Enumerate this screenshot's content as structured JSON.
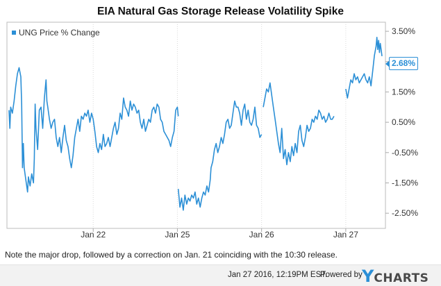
{
  "chart_data": {
    "type": "line",
    "title": "EIA Natural Gas Storage Release Volatility Spike",
    "legend": "UNG Price % Change",
    "xlabel": "",
    "ylabel": "",
    "ylim": [
      -3.0,
      3.8
    ],
    "yticks": [
      3.5,
      2.5,
      1.5,
      0.5,
      -0.5,
      -1.5,
      -2.5
    ],
    "ytick_labels": [
      "3.50%",
      "2.50%",
      "1.50%",
      "0.50%",
      "-0.50%",
      "-1.50%",
      "-2.50%"
    ],
    "xticks": [
      {
        "day": 1,
        "label": "Jan 22"
      },
      {
        "day": 2,
        "label": "Jan 25"
      },
      {
        "day": 3,
        "label": "Jan 26"
      },
      {
        "day": 4,
        "label": "Jan 27"
      }
    ],
    "xlim": [
      0,
      4.43
    ],
    "last_value_label": "2.68%",
    "series": [
      {
        "name": "UNG Price % Change",
        "color": "#2b8fd6",
        "segments": [
          [
            [
              0.0,
              0.9
            ],
            [
              0.01,
              0.3
            ],
            [
              0.02,
              1.0
            ],
            [
              0.04,
              0.8
            ],
            [
              0.06,
              1.2
            ],
            [
              0.08,
              1.7
            ],
            [
              0.1,
              2.1
            ],
            [
              0.12,
              2.3
            ],
            [
              0.14,
              2.0
            ],
            [
              0.15,
              1.1
            ],
            [
              0.16,
              -1.0
            ],
            [
              0.17,
              -0.2
            ],
            [
              0.18,
              -1.0
            ],
            [
              0.2,
              -1.4
            ],
            [
              0.22,
              -1.8
            ],
            [
              0.23,
              -1.3
            ],
            [
              0.25,
              -1.6
            ],
            [
              0.27,
              -1.2
            ],
            [
              0.29,
              -1.5
            ],
            [
              0.3,
              -0.7
            ],
            [
              0.31,
              1.1
            ],
            [
              0.32,
              0.3
            ],
            [
              0.34,
              -0.4
            ],
            [
              0.36,
              0.9
            ],
            [
              0.38,
              1.0
            ],
            [
              0.4,
              0.3
            ],
            [
              0.42,
              1.3
            ],
            [
              0.44,
              1.9
            ],
            [
              0.45,
              1.2
            ],
            [
              0.46,
              1.0
            ],
            [
              0.48,
              0.6
            ],
            [
              0.5,
              0.3
            ],
            [
              0.52,
              0.5
            ],
            [
              0.54,
              0.6
            ],
            [
              0.56,
              0.0
            ],
            [
              0.58,
              -0.3
            ],
            [
              0.6,
              0.0
            ],
            [
              0.62,
              -0.5
            ],
            [
              0.64,
              0.0
            ],
            [
              0.66,
              0.4
            ],
            [
              0.68,
              -0.1
            ],
            [
              0.7,
              -0.3
            ],
            [
              0.72,
              -0.7
            ],
            [
              0.74,
              -1.0
            ],
            [
              0.76,
              -0.6
            ],
            [
              0.78,
              0.0
            ],
            [
              0.8,
              0.3
            ],
            [
              0.82,
              0.6
            ],
            [
              0.84,
              0.2
            ],
            [
              0.86,
              0.7
            ],
            [
              0.88,
              0.6
            ],
            [
              0.9,
              0.8
            ],
            [
              0.92,
              0.7
            ],
            [
              0.94,
              0.9
            ],
            [
              0.96,
              0.5
            ],
            [
              0.98,
              0.8
            ],
            [
              1.0,
              0.6
            ],
            [
              1.02,
              0.2
            ],
            [
              1.04,
              -0.3
            ],
            [
              1.06,
              -0.5
            ],
            [
              1.08,
              -0.2
            ],
            [
              1.1,
              -0.4
            ],
            [
              1.12,
              0.1
            ],
            [
              1.14,
              -0.3
            ],
            [
              1.16,
              -0.2
            ],
            [
              1.18,
              0.0
            ],
            [
              1.2,
              -0.3
            ],
            [
              1.22,
              0.0
            ],
            [
              1.24,
              0.3
            ],
            [
              1.26,
              0.5
            ],
            [
              1.28,
              0.1
            ],
            [
              1.3,
              0.3
            ],
            [
              1.32,
              0.8
            ],
            [
              1.34,
              0.6
            ],
            [
              1.36,
              1.3
            ],
            [
              1.38,
              1.0
            ],
            [
              1.4,
              0.9
            ],
            [
              1.42,
              0.7
            ],
            [
              1.44,
              1.2
            ],
            [
              1.46,
              0.9
            ],
            [
              1.48,
              1.1
            ],
            [
              1.5,
              1.0
            ],
            [
              1.52,
              0.8
            ],
            [
              1.54,
              0.9
            ],
            [
              1.56,
              0.5
            ],
            [
              1.58,
              0.3
            ],
            [
              1.6,
              0.6
            ],
            [
              1.62,
              0.2
            ],
            [
              1.64,
              0.4
            ],
            [
              1.66,
              0.6
            ],
            [
              1.68,
              0.5
            ],
            [
              1.7,
              0.9
            ],
            [
              1.72,
              1.0
            ],
            [
              1.74,
              0.8
            ],
            [
              1.76,
              1.1
            ],
            [
              1.78,
              1.0
            ],
            [
              1.8,
              0.6
            ],
            [
              1.82,
              0.5
            ],
            [
              1.84,
              0.2
            ],
            [
              1.86,
              0.1
            ],
            [
              1.88,
              0.0
            ],
            [
              1.9,
              -0.1
            ],
            [
              1.92,
              -0.3
            ],
            [
              1.94,
              0.0
            ],
            [
              1.96,
              0.2
            ],
            [
              1.98,
              0.9
            ],
            [
              2.0,
              1.0
            ],
            [
              2.01,
              0.7
            ]
          ],
          [
            [
              2.01,
              -1.7
            ],
            [
              2.03,
              -2.3
            ],
            [
              2.05,
              -2.0
            ],
            [
              2.07,
              -2.4
            ],
            [
              2.09,
              -1.9
            ],
            [
              2.11,
              -2.2
            ],
            [
              2.13,
              -2.0
            ],
            [
              2.15,
              -2.1
            ],
            [
              2.17,
              -1.9
            ],
            [
              2.19,
              -2.0
            ],
            [
              2.21,
              -1.8
            ],
            [
              2.23,
              -2.2
            ],
            [
              2.25,
              -2.0
            ],
            [
              2.27,
              -2.3
            ],
            [
              2.29,
              -2.0
            ],
            [
              2.31,
              -1.8
            ],
            [
              2.33,
              -1.9
            ],
            [
              2.35,
              -1.6
            ],
            [
              2.37,
              -1.8
            ],
            [
              2.39,
              -1.4
            ],
            [
              2.4,
              -1.0
            ],
            [
              2.42,
              -0.8
            ],
            [
              2.44,
              -0.4
            ],
            [
              2.46,
              -0.2
            ],
            [
              2.48,
              -0.5
            ],
            [
              2.5,
              -0.3
            ],
            [
              2.52,
              0.0
            ],
            [
              2.54,
              -0.2
            ],
            [
              2.56,
              0.1
            ],
            [
              2.58,
              0.5
            ],
            [
              2.6,
              0.6
            ],
            [
              2.62,
              0.3
            ],
            [
              2.64,
              0.4
            ],
            [
              2.66,
              0.8
            ],
            [
              2.68,
              1.2
            ],
            [
              2.7,
              1.0
            ],
            [
              2.72,
              1.0
            ],
            [
              2.74,
              0.8
            ],
            [
              2.76,
              0.4
            ],
            [
              2.78,
              0.9
            ],
            [
              2.8,
              1.1
            ],
            [
              2.82,
              0.6
            ],
            [
              2.84,
              0.9
            ],
            [
              2.86,
              0.5
            ],
            [
              2.88,
              0.4
            ],
            [
              2.9,
              0.6
            ],
            [
              2.92,
              1.0
            ],
            [
              2.94,
              0.4
            ],
            [
              2.96,
              0.3
            ],
            [
              2.98,
              0.0
            ],
            [
              3.0,
              0.1
            ]
          ],
          [
            [
              3.02,
              1.0
            ],
            [
              3.04,
              1.3
            ],
            [
              3.06,
              1.6
            ],
            [
              3.08,
              1.5
            ],
            [
              3.1,
              1.8
            ],
            [
              3.12,
              1.4
            ],
            [
              3.14,
              1.0
            ],
            [
              3.16,
              0.6
            ],
            [
              3.18,
              0.2
            ],
            [
              3.2,
              -0.2
            ],
            [
              3.22,
              -0.5
            ],
            [
              3.24,
              0.3
            ],
            [
              3.26,
              -0.7
            ],
            [
              3.28,
              -0.4
            ],
            [
              3.3,
              -0.9
            ],
            [
              3.32,
              -0.5
            ],
            [
              3.34,
              -0.8
            ],
            [
              3.36,
              -0.3
            ],
            [
              3.38,
              -0.6
            ],
            [
              3.4,
              -0.2
            ],
            [
              3.42,
              -0.5
            ],
            [
              3.44,
              0.2
            ],
            [
              3.46,
              0.4
            ],
            [
              3.48,
              -0.1
            ],
            [
              3.5,
              -0.3
            ],
            [
              3.52,
              0.0
            ],
            [
              3.54,
              0.4
            ],
            [
              3.56,
              0.2
            ],
            [
              3.58,
              0.3
            ],
            [
              3.6,
              0.6
            ],
            [
              3.62,
              0.5
            ],
            [
              3.64,
              0.7
            ],
            [
              3.66,
              0.6
            ],
            [
              3.68,
              0.9
            ],
            [
              3.7,
              0.8
            ],
            [
              3.72,
              0.6
            ],
            [
              3.74,
              0.7
            ],
            [
              3.76,
              0.5
            ],
            [
              3.78,
              0.6
            ],
            [
              3.8,
              0.8
            ],
            [
              3.82,
              0.6
            ],
            [
              3.84,
              0.6
            ],
            [
              3.86,
              0.7
            ]
          ],
          [
            [
              4.0,
              1.6
            ],
            [
              4.02,
              1.3
            ],
            [
              4.04,
              1.6
            ],
            [
              4.06,
              1.9
            ],
            [
              4.08,
              1.8
            ],
            [
              4.1,
              2.1
            ],
            [
              4.12,
              1.9
            ],
            [
              4.14,
              2.0
            ],
            [
              4.16,
              1.8
            ],
            [
              4.18,
              1.9
            ],
            [
              4.2,
              2.0
            ],
            [
              4.22,
              2.1
            ],
            [
              4.24,
              1.9
            ],
            [
              4.26,
              1.8
            ],
            [
              4.28,
              2.0
            ],
            [
              4.3,
              1.7
            ],
            [
              4.32,
              2.2
            ],
            [
              4.34,
              2.7
            ],
            [
              4.36,
              3.0
            ],
            [
              4.37,
              3.3
            ],
            [
              4.38,
              2.9
            ],
            [
              4.39,
              3.2
            ],
            [
              4.4,
              2.8
            ],
            [
              4.41,
              3.1
            ],
            [
              4.42,
              2.9
            ],
            [
              4.43,
              2.68
            ]
          ]
        ]
      }
    ]
  },
  "annotation": {
    "note": "Note the major drop, followed by a correction on Jan. 21 coinciding with the 10:30 release."
  },
  "footer": {
    "timestamp": "Jan 27 2016, 12:19PM EST.",
    "powered_by": "Powered by",
    "logo_y": "Y",
    "logo_rest": "CHARTS"
  },
  "colors": {
    "line": "#2b8fd6",
    "grid": "#d9d9d9",
    "axis": "#aaaaaa"
  }
}
